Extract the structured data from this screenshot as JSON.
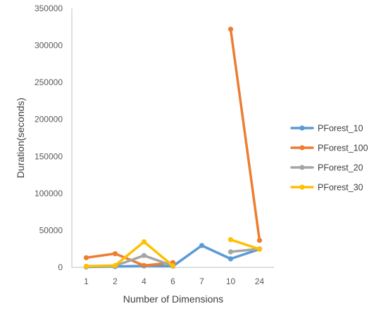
{
  "chart_data": {
    "type": "line",
    "title": "",
    "xlabel": "Number of Dimensions",
    "ylabel": "Duration(seconds)",
    "categories": [
      "1",
      "2",
      "4",
      "6",
      "7",
      "10",
      "24"
    ],
    "ylim": [
      0,
      350000
    ],
    "yticks": [
      0,
      50000,
      100000,
      150000,
      200000,
      250000,
      300000,
      350000
    ],
    "grid": false,
    "legend_position": "right",
    "series": [
      {
        "name": "PForest_10",
        "color": "#5B9BD5",
        "values": [
          500,
          1000,
          2000,
          1500,
          29500,
          11500,
          24500
        ]
      },
      {
        "name": "PForest_100",
        "color": "#ED7D31",
        "values": [
          13000,
          18500,
          2500,
          6500,
          null,
          322000,
          36500
        ]
      },
      {
        "name": "PForest_20",
        "color": "#A5A5A5",
        "values": [
          1000,
          2000,
          16000,
          2000,
          null,
          21000,
          25000
        ]
      },
      {
        "name": "PForest_30",
        "color": "#FFC000",
        "values": [
          1500,
          2500,
          34500,
          2000,
          null,
          37500,
          24500
        ]
      }
    ]
  }
}
